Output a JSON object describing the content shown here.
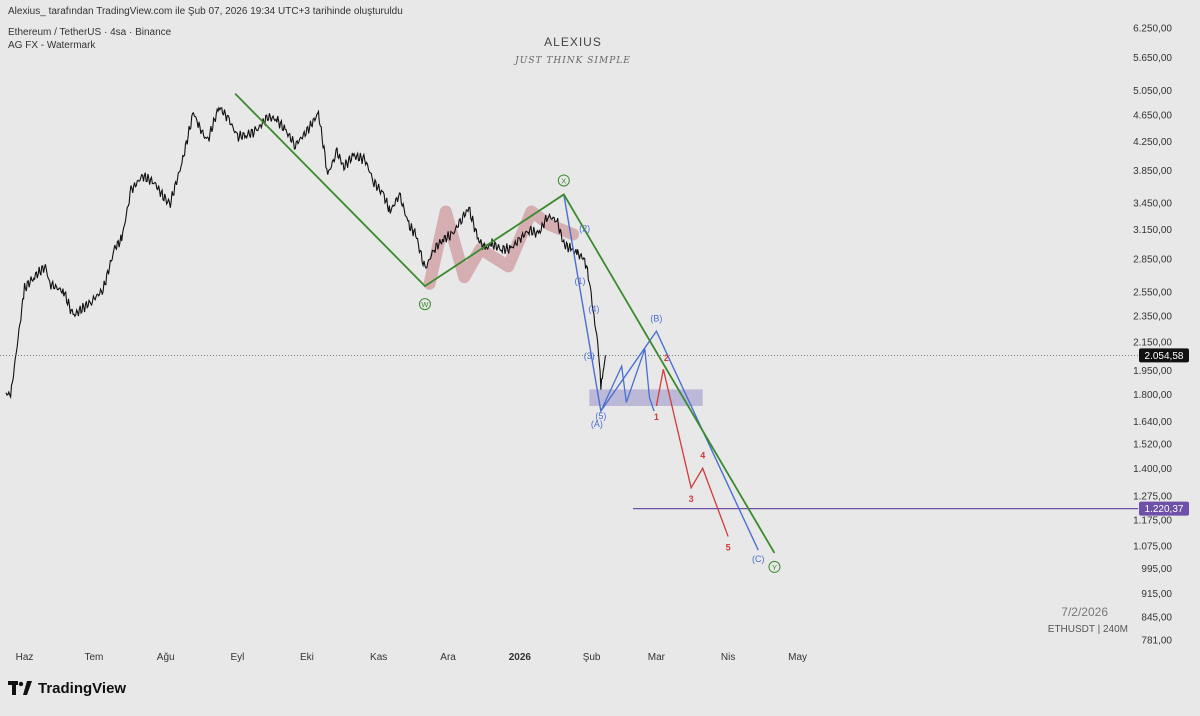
{
  "header": {
    "credit": "Alexius_ tarafından TradingView.com ile Şub 07, 2026 19:34 UTC+3 tarihinde oluşturuldu",
    "symbol": "Ethereum / TetherUS · 4sa · Binance",
    "indicator": "AG FX - Watermark"
  },
  "watermark": {
    "title": "ALEXIUS",
    "subtitle": "JUST THINK SIMPLE",
    "date": "7/2/2026",
    "symbol": "ETHUSDT | 240M"
  },
  "branding": {
    "logo_text": "TradingView",
    "logo_icon": "tradingview-logo-icon"
  },
  "colors": {
    "background": "#e8e8e8",
    "candle": "#111111",
    "green_channel": "#3b8a2e",
    "blue_wave": "#4a6fd1",
    "red_wave": "#d13b3b",
    "pink_wave": "#c98f93",
    "purple_line": "#6e50a8",
    "zone_fill": "#9f97cd"
  },
  "chart_data": {
    "type": "line",
    "instrument": "ETHUSDT",
    "interval": "4sa",
    "y_scale": "log",
    "y_ticks": [
      "6.250,00",
      "5.650,00",
      "5.050,00",
      "4.650,00",
      "4.250,00",
      "3.850,00",
      "3.450,00",
      "3.150,00",
      "2.850,00",
      "2.550,00",
      "2.350,00",
      "2.150,00",
      "1.950,00",
      "1.800,00",
      "1.640,00",
      "1.520,00",
      "1.400,00",
      "1.275,00",
      "1.175,00",
      "1.075,00",
      "995,00",
      "915,00",
      "845,00",
      "781,00"
    ],
    "x_ticks": [
      "Haz",
      "Tem",
      "Ağu",
      "Eyl",
      "Eki",
      "Kas",
      "Ara",
      "2026",
      "Şub",
      "Mar",
      "Nis",
      "May"
    ],
    "current_price": {
      "label": "2.054,58",
      "value": 2054.58,
      "color": "#111111"
    },
    "level_line": {
      "label": "1.220,37",
      "value": 1220.37,
      "color": "#6e50a8"
    },
    "price_series": {
      "name": "ETHUSDT",
      "x": [
        "2025-05-24",
        "2025-05-26",
        "2025-06-01",
        "2025-06-05",
        "2025-06-10",
        "2025-06-12",
        "2025-06-18",
        "2025-06-22",
        "2025-06-30",
        "2025-07-05",
        "2025-07-10",
        "2025-07-13",
        "2025-07-17",
        "2025-07-22",
        "2025-07-27",
        "2025-08-01",
        "2025-08-03",
        "2025-08-08",
        "2025-08-13",
        "2025-08-15",
        "2025-08-19",
        "2025-08-24",
        "2025-08-28",
        "2025-09-01",
        "2025-09-05",
        "2025-09-09",
        "2025-09-14",
        "2025-09-18",
        "2025-09-22",
        "2025-09-26",
        "2025-10-01",
        "2025-10-06",
        "2025-10-10",
        "2025-10-14",
        "2025-10-17",
        "2025-10-21",
        "2025-10-26",
        "2025-10-30",
        "2025-11-03",
        "2025-11-06",
        "2025-11-10",
        "2025-11-14",
        "2025-11-17",
        "2025-11-21",
        "2025-11-25",
        "2025-11-29",
        "2025-12-03",
        "2025-12-07",
        "2025-12-10",
        "2025-12-14",
        "2025-12-17",
        "2025-12-20",
        "2025-12-24",
        "2025-12-28",
        "2026-01-01",
        "2026-01-05",
        "2026-01-09",
        "2026-01-13",
        "2026-01-17",
        "2026-01-20",
        "2026-01-23",
        "2026-01-26",
        "2026-01-29",
        "2026-01-31",
        "2026-02-02",
        "2026-02-04",
        "2026-02-05",
        "2026-02-06",
        "2026-02-07"
      ],
      "close": [
        1810,
        1790,
        2580,
        2680,
        2780,
        2620,
        2550,
        2350,
        2470,
        2570,
        2960,
        3050,
        3600,
        3780,
        3700,
        3480,
        3450,
        3950,
        4700,
        4500,
        4250,
        4780,
        4600,
        4320,
        4350,
        4400,
        4620,
        4580,
        4400,
        4200,
        4400,
        4680,
        3800,
        4100,
        3900,
        4050,
        4000,
        3700,
        3550,
        3350,
        3550,
        3200,
        3100,
        2750,
        2950,
        3050,
        3100,
        3280,
        3380,
        3050,
        2950,
        3000,
        2950,
        2950,
        3050,
        3150,
        3100,
        3300,
        3250,
        3000,
        2950,
        2900,
        2850,
        2650,
        2350,
        2100,
        1830,
        1950,
        2054.58
      ]
    },
    "wxy": {
      "labels": [
        "W",
        "X",
        "Y"
      ],
      "path": [
        [
          "2025-08-31",
          5000
        ],
        [
          "2025-11-21",
          2600
        ],
        [
          "2026-01-20",
          3550
        ],
        [
          "2026-04-21",
          1050
        ]
      ]
    },
    "pink_wave": [
      [
        "2025-11-23",
        2620
      ],
      [
        "2025-11-30",
        3350
      ],
      [
        "2025-12-08",
        2680
      ],
      [
        "2025-12-15",
        2950
      ],
      [
        "2025-12-27",
        2780
      ],
      [
        "2026-01-06",
        3350
      ],
      [
        "2026-01-14",
        3200
      ],
      [
        "2026-01-24",
        3100
      ]
    ],
    "blue_abc": {
      "labels": [
        "(A)",
        "(B)",
        "(C)"
      ],
      "path": [
        [
          "2026-01-20",
          3550
        ],
        [
          "2026-02-05",
          1700
        ],
        [
          "2026-03-01",
          2230
        ],
        [
          "2026-04-14",
          1060
        ]
      ]
    },
    "impulse_labels": [
      "(1)",
      "(2)",
      "(3)",
      "(4)",
      "(5)"
    ],
    "blue_subwave": [
      [
        "2026-02-05",
        1700
      ],
      [
        "2026-02-14",
        1980
      ],
      [
        "2026-02-16",
        1750
      ],
      [
        "2026-02-24",
        2100
      ],
      [
        "2026-02-26",
        1780
      ],
      [
        "2026-02-28",
        1700
      ]
    ],
    "red_impulse": {
      "labels": [
        "1",
        "2",
        "3",
        "4",
        "5"
      ],
      "path": [
        [
          "2026-03-01",
          1730
        ],
        [
          "2026-03-04",
          1960
        ],
        [
          "2026-03-16",
          1310
        ],
        [
          "2026-03-21",
          1400
        ],
        [
          "2026-04-01",
          1110
        ]
      ]
    },
    "support_zone": {
      "range": [
        1730,
        1830
      ],
      "from": "2026-01-31",
      "to": "2026-03-21"
    }
  }
}
